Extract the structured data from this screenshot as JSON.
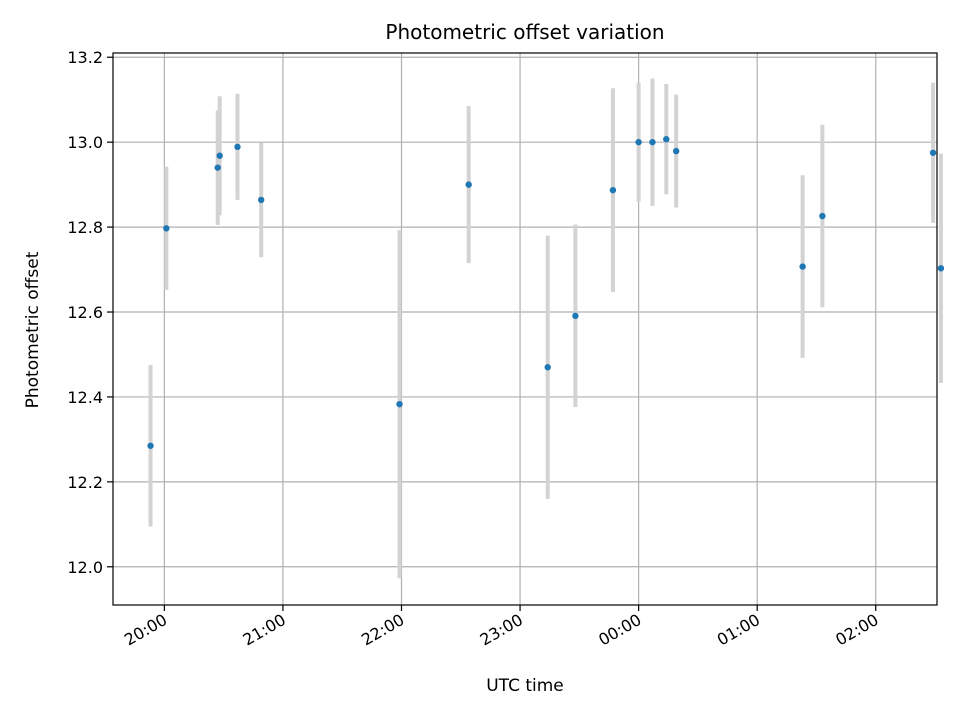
{
  "chart_data": {
    "type": "scatter",
    "title": "Photometric offset variation",
    "xlabel": "UTC time",
    "ylabel": "Photometric offset",
    "x_ticks": [
      "20:00",
      "21:00",
      "22:00",
      "23:00",
      "00:00",
      "01:00",
      "02:00"
    ],
    "x_tick_minutes": [
      0,
      60,
      120,
      180,
      240,
      300,
      360
    ],
    "x_range_minutes": [
      -26,
      391
    ],
    "y_ticks": [
      "12.0",
      "12.2",
      "12.4",
      "12.6",
      "12.8",
      "13.0",
      "13.2"
    ],
    "y_tick_values": [
      12.0,
      12.2,
      12.4,
      12.6,
      12.8,
      13.0,
      13.2
    ],
    "ylim": [
      11.91,
      13.21
    ],
    "grid": true,
    "point_color": "#1f77b4",
    "errorbar_color": "#d3d3d3",
    "points": [
      {
        "t_minutes": -7,
        "y": 12.285,
        "err": 0.19
      },
      {
        "t_minutes": 1,
        "y": 12.797,
        "err": 0.145
      },
      {
        "t_minutes": 27,
        "y": 12.94,
        "err": 0.135
      },
      {
        "t_minutes": 28,
        "y": 12.968,
        "err": 0.14
      },
      {
        "t_minutes": 37,
        "y": 12.989,
        "err": 0.125
      },
      {
        "t_minutes": 49,
        "y": 12.864,
        "err": 0.135
      },
      {
        "t_minutes": 119,
        "y": 12.383,
        "err": 0.41
      },
      {
        "t_minutes": 154,
        "y": 12.9,
        "err": 0.185
      },
      {
        "t_minutes": 194,
        "y": 12.47,
        "err": 0.31
      },
      {
        "t_minutes": 208,
        "y": 12.591,
        "err": 0.215
      },
      {
        "t_minutes": 227,
        "y": 12.887,
        "err": 0.24
      },
      {
        "t_minutes": 240,
        "y": 13.0,
        "err": 0.14
      },
      {
        "t_minutes": 247,
        "y": 13.0,
        "err": 0.15
      },
      {
        "t_minutes": 254,
        "y": 13.007,
        "err": 0.13
      },
      {
        "t_minutes": 259,
        "y": 12.979,
        "err": 0.133
      },
      {
        "t_minutes": 323,
        "y": 12.707,
        "err": 0.215
      },
      {
        "t_minutes": 333,
        "y": 12.826,
        "err": 0.215
      },
      {
        "t_minutes": 389,
        "y": 12.975,
        "err": 0.165
      },
      {
        "t_minutes": 393,
        "y": 12.703,
        "err": 0.27
      }
    ]
  }
}
